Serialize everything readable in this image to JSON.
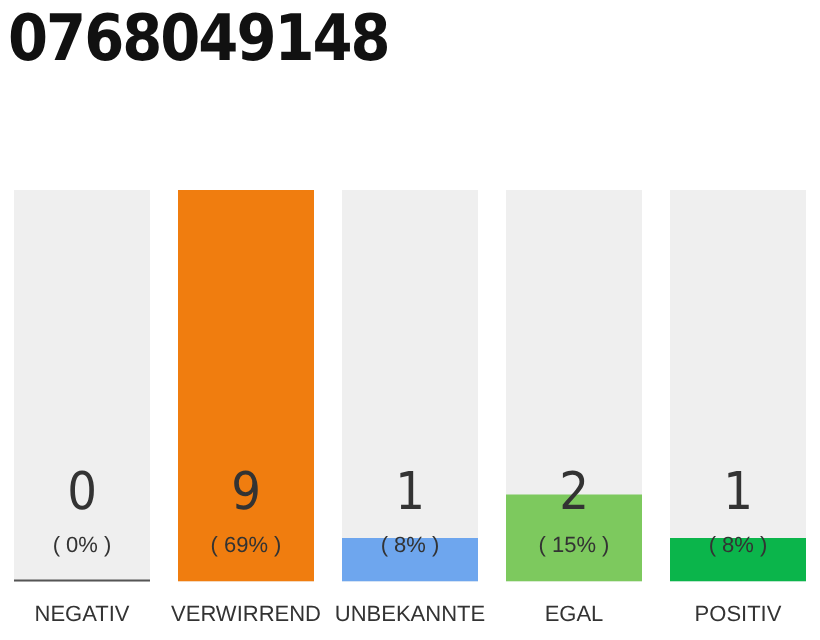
{
  "chart_data": {
    "type": "bar",
    "title": "0768049148",
    "categories": [
      "NEGATIV",
      "VERWIRREND",
      "UNBEKANNTE",
      "EGAL",
      "POSITIV"
    ],
    "values": [
      0,
      9,
      1,
      2,
      1
    ],
    "value_labels": [
      "0\n( 0% )",
      "9\n( 69% )",
      "1\n( 8% )",
      "2\n( 15% )",
      "1\n( 8% )"
    ],
    "colors": [
      "#555555",
      "#f07d0f",
      "#6ea6ee",
      "#7dc95e",
      "#0bb54b"
    ],
    "grid": false,
    "legend": false
  }
}
